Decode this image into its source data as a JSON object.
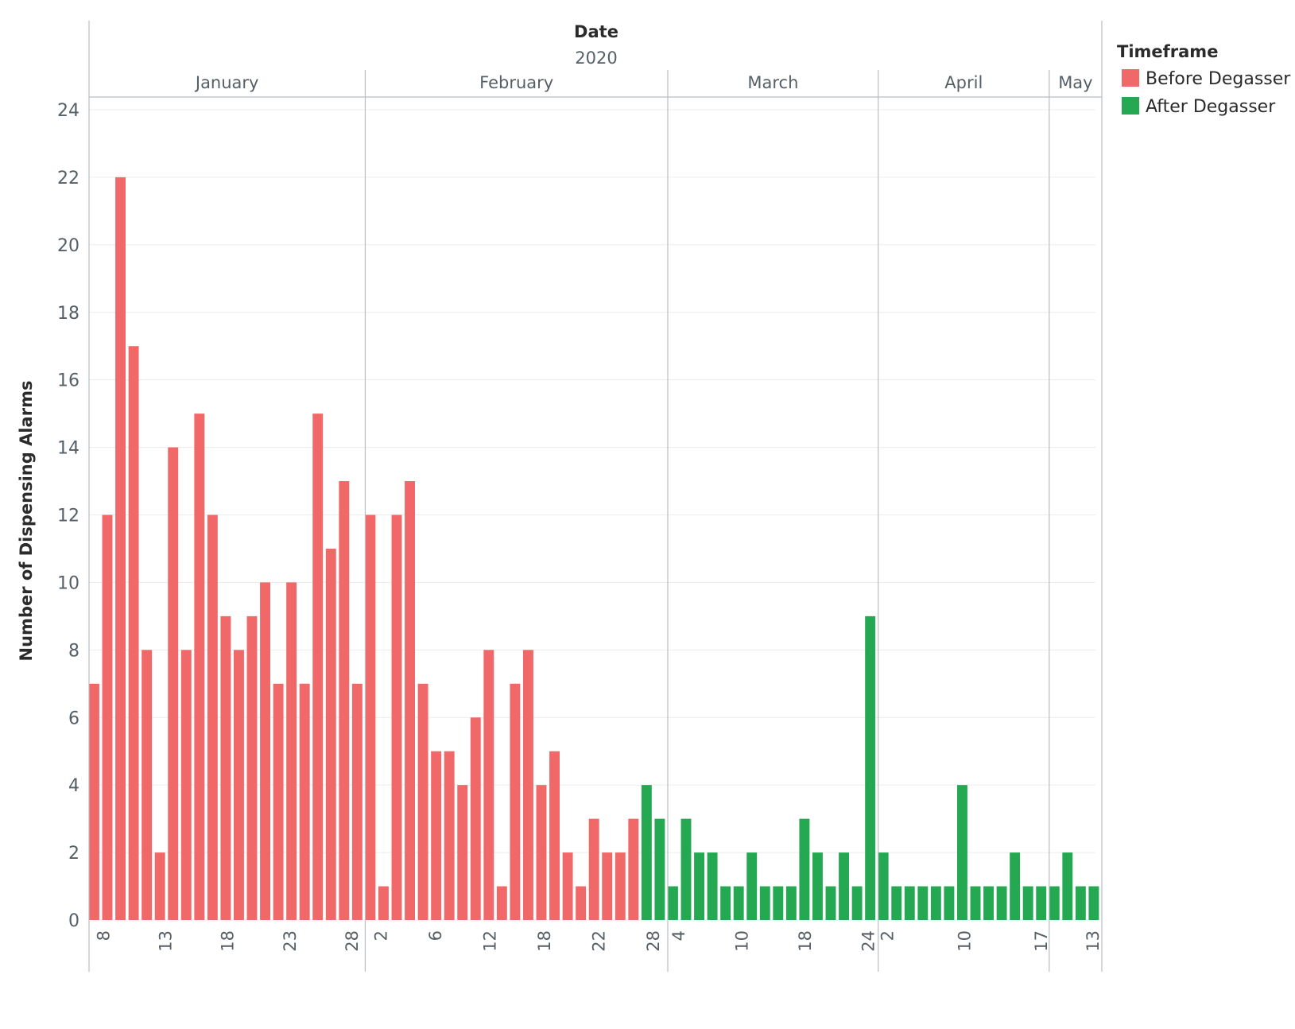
{
  "chart_data": {
    "type": "bar",
    "title": "Date",
    "subtitle": "2020",
    "xlabel": "Date",
    "ylabel": "Number of Dispensing Alarms",
    "ylim": [
      0,
      24
    ],
    "yticks": [
      0,
      2,
      4,
      6,
      8,
      10,
      12,
      14,
      16,
      18,
      20,
      22,
      24
    ],
    "grid": true,
    "legend": {
      "title": "Timeframe",
      "position": "top-right",
      "entries": [
        {
          "name": "Before Degasser",
          "color": "#f06868"
        },
        {
          "name": "After Degasser",
          "color": "#25a852"
        }
      ]
    },
    "months": [
      {
        "label": "January",
        "bars": 21
      },
      {
        "label": "February",
        "bars": 23
      },
      {
        "label": "March",
        "bars": 16
      },
      {
        "label": "April",
        "bars": 13
      },
      {
        "label": "May",
        "bars": 4
      }
    ],
    "month_tick_labels": [
      [
        "8",
        "13",
        "18",
        "23",
        "28"
      ],
      [
        "2",
        "6",
        "12",
        "18",
        "22",
        "28"
      ],
      [
        "4",
        "10",
        "18",
        "24"
      ],
      [
        "2",
        "10",
        "17"
      ],
      [
        "13"
      ]
    ],
    "series": [
      {
        "name": "Before Degasser",
        "color": "#f06868",
        "values": [
          7,
          12,
          22,
          17,
          8,
          2,
          14,
          8,
          15,
          12,
          9,
          8,
          9,
          10,
          7,
          10,
          7,
          15,
          11,
          13,
          7,
          12,
          1,
          12,
          13,
          7,
          5,
          5,
          4,
          6,
          8,
          1,
          7,
          8,
          4,
          5,
          2,
          1,
          3,
          2,
          2,
          3
        ]
      },
      {
        "name": "After Degasser",
        "color": "#25a852",
        "values": [
          4,
          3,
          1,
          3,
          2,
          2,
          1,
          1,
          2,
          1,
          1,
          1,
          3,
          2,
          1,
          2,
          1,
          9,
          2,
          1,
          1,
          1,
          1,
          1,
          4,
          1,
          1,
          1,
          2,
          1,
          1,
          1,
          2,
          1,
          1
        ]
      }
    ]
  }
}
